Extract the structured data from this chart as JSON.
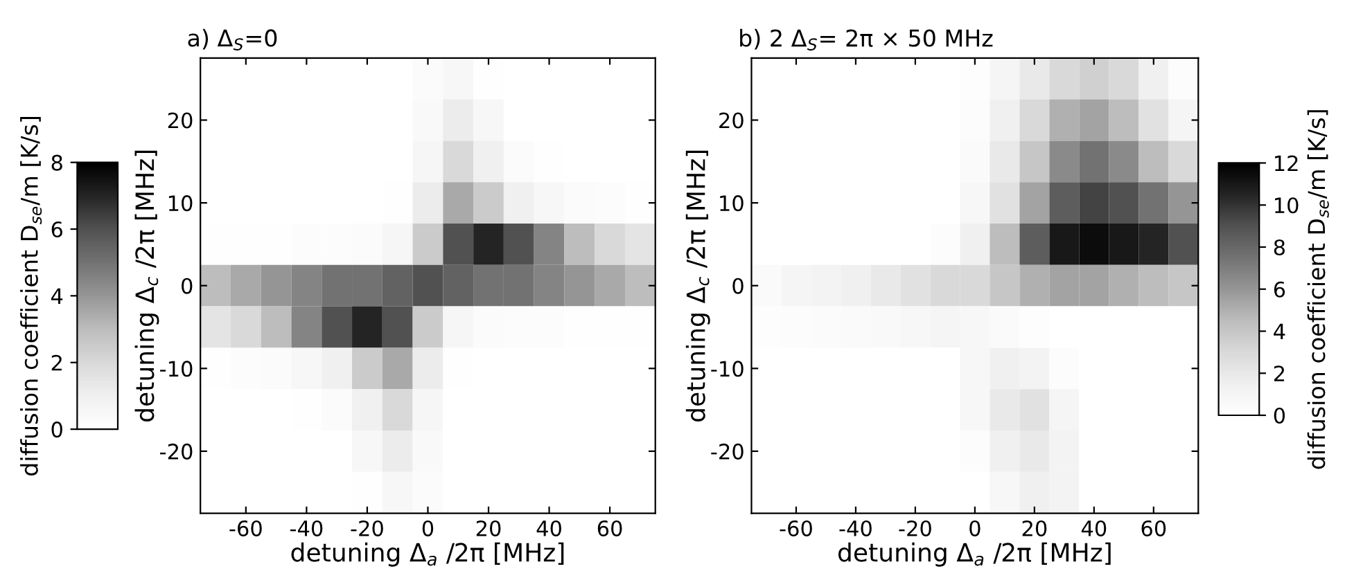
{
  "chart_data": [
    {
      "type": "heatmap",
      "title": "a) Δ$_{S}$=0",
      "xlabel": "detuning Δ$_{a}$ /2π [MHz]",
      "ylabel": "detuning Δ$_{c}$ /2π [MHz]",
      "clabel": "diffusion coefficient D$_{se}$/m [K/s]",
      "categories": [
        null,
        "-60",
        null,
        "-40",
        null,
        "-20",
        null,
        "0",
        null,
        "20",
        null,
        "40",
        null,
        "60",
        null
      ],
      "y_categories": [
        null,
        "20",
        null,
        "10",
        null,
        "0",
        null,
        "-10",
        null,
        "-20",
        null
      ],
      "clim": [
        0,
        8
      ],
      "cticks": [
        0,
        2,
        4,
        6,
        8
      ],
      "cells": [
        [
          0,
          0,
          0,
          0,
          0,
          0,
          0,
          0.3,
          0.5,
          0.1,
          0,
          0,
          0,
          0,
          0
        ],
        [
          0,
          0,
          0,
          0,
          0,
          0,
          0,
          0.4,
          1.2,
          0.5,
          0,
          0,
          0,
          0,
          0
        ],
        [
          0,
          0,
          0,
          0,
          0,
          0,
          0,
          0.6,
          2,
          1,
          0.3,
          0.1,
          0,
          0,
          0
        ],
        [
          0,
          0,
          0,
          0,
          0,
          0,
          0.1,
          1.2,
          3.5,
          2.5,
          1,
          0.5,
          0.3,
          0.2,
          0.1
        ],
        [
          0.1,
          0.1,
          0.1,
          0.2,
          0.2,
          0.3,
          0.6,
          2.5,
          6,
          7,
          6,
          4.5,
          3,
          2,
          1.5
        ],
        [
          3,
          3.5,
          4,
          4.5,
          5,
          5,
          5.5,
          6,
          5.5,
          5,
          5,
          4.5,
          4,
          3.5,
          3
        ],
        [
          1.5,
          2,
          3,
          4.5,
          6,
          7,
          6,
          2.5,
          0.6,
          0.3,
          0.2,
          0.2,
          0.1,
          0.1,
          0.1
        ],
        [
          0.1,
          0.2,
          0.3,
          0.5,
          1,
          2.5,
          3.5,
          1.2,
          0.1,
          0,
          0,
          0,
          0,
          0,
          0
        ],
        [
          0,
          0,
          0,
          0.1,
          0.3,
          1,
          2,
          0.6,
          0,
          0,
          0,
          0,
          0,
          0,
          0
        ],
        [
          0,
          0,
          0,
          0,
          0,
          0.5,
          1.2,
          0.4,
          0,
          0,
          0,
          0,
          0,
          0,
          0
        ],
        [
          0,
          0,
          0,
          0,
          0,
          0.1,
          0.5,
          0.3,
          0,
          0,
          0,
          0,
          0,
          0,
          0
        ]
      ]
    },
    {
      "type": "heatmap",
      "title": "b) 2 Δ$_{S}$= 2π × 50 MHz",
      "xlabel": "detuning Δ$_{a}$ /2π [MHz]",
      "ylabel": "detuning Δ$_{c}$ /2π [MHz]",
      "clabel": "diffusion coefficient D$_{se}$/m [K/s]",
      "categories": [
        null,
        "-60",
        null,
        "-40",
        null,
        "-20",
        null,
        "0",
        null,
        "20",
        null,
        "40",
        null,
        "60",
        null
      ],
      "y_categories": [
        null,
        "20",
        null,
        "10",
        null,
        "0",
        null,
        "-10",
        null,
        "-20",
        null
      ],
      "clim": [
        0,
        12
      ],
      "cticks": [
        0,
        2,
        4,
        6,
        8,
        10,
        12
      ],
      "cells": [
        [
          0,
          0,
          0,
          0,
          0,
          0,
          0,
          0.2,
          1,
          2,
          3,
          3.5,
          3,
          1.5,
          0.3
        ],
        [
          0,
          0,
          0,
          0,
          0,
          0,
          0,
          0.3,
          1.5,
          3,
          5,
          5.5,
          4.5,
          2.5,
          1
        ],
        [
          0,
          0,
          0,
          0,
          0,
          0,
          0,
          0.5,
          2,
          4,
          6.5,
          7.5,
          6.5,
          4.5,
          3
        ],
        [
          0,
          0,
          0,
          0,
          0,
          0,
          0,
          0.8,
          2.5,
          5.5,
          8.5,
          9.5,
          9,
          7.5,
          6
        ],
        [
          0,
          0,
          0,
          0,
          0,
          0,
          0.3,
          1.5,
          4.5,
          8.5,
          11,
          11.5,
          11,
          10.5,
          9
        ],
        [
          0.5,
          1,
          1.2,
          1.5,
          2,
          2.5,
          3,
          3,
          4,
          5,
          5.5,
          5.5,
          5,
          4.5,
          4
        ],
        [
          0.2,
          0.3,
          0.4,
          0.5,
          0.6,
          0.8,
          1,
          0.8,
          0.5,
          0.2,
          0,
          0,
          0,
          0,
          0
        ],
        [
          0,
          0,
          0,
          0,
          0,
          0,
          0,
          0.8,
          1.5,
          1.2,
          0.3,
          0,
          0,
          0,
          0
        ],
        [
          0,
          0,
          0,
          0,
          0,
          0,
          0,
          0.8,
          2,
          2.5,
          1,
          0,
          0,
          0,
          0
        ],
        [
          0,
          0,
          0,
          0,
          0,
          0,
          0,
          0.3,
          1.5,
          2,
          1.2,
          0,
          0,
          0,
          0
        ],
        [
          0,
          0,
          0,
          0,
          0,
          0,
          0,
          0,
          0.8,
          1.5,
          1.2,
          0,
          0,
          0,
          0
        ]
      ]
    }
  ]
}
